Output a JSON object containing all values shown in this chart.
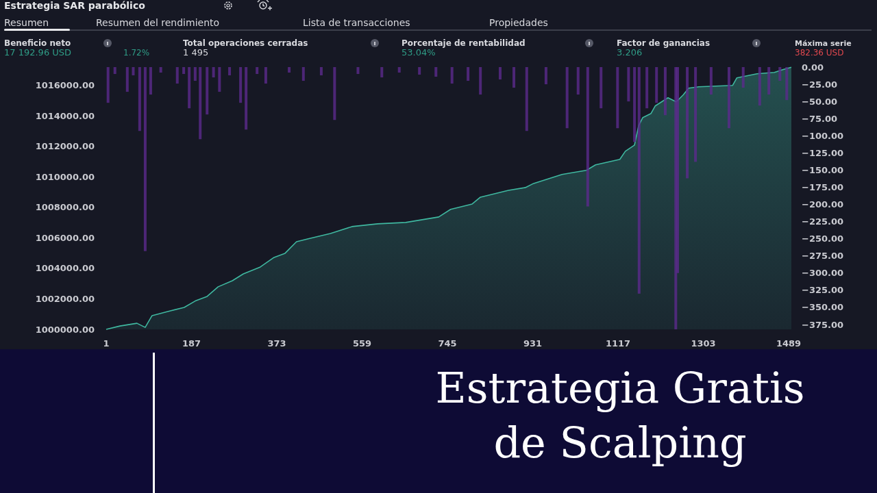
{
  "chart_data": {
    "type": "area",
    "title": "Estrategia SAR parabólico",
    "xlim": [
      1,
      1495
    ],
    "xticks": [
      1,
      187,
      373,
      559,
      745,
      931,
      1117,
      1303,
      1489
    ],
    "ylim": [
      1000000,
      1017200
    ],
    "yticks": [
      {
        "value": 1000000,
        "label": "1000000.00"
      },
      {
        "value": 1002000,
        "label": "1002000.00"
      },
      {
        "value": 1004000,
        "label": "1004000.00"
      },
      {
        "value": 1006000,
        "label": "1006000.00"
      },
      {
        "value": 1008000,
        "label": "1008000.00"
      },
      {
        "value": 1010000,
        "label": "1010000.00"
      },
      {
        "value": 1012000,
        "label": "1012000.00"
      },
      {
        "value": 1014000,
        "label": "1014000.00"
      },
      {
        "value": 1016000,
        "label": "1016000.00"
      }
    ],
    "y2lim": [
      -382,
      0
    ],
    "y2ticks": [
      {
        "value": 0,
        "label": "0.00"
      },
      {
        "value": -25,
        "label": "−25.00"
      },
      {
        "value": -50,
        "label": "−50.00"
      },
      {
        "value": -75,
        "label": "−75.00"
      },
      {
        "value": -100,
        "label": "−100.00"
      },
      {
        "value": -125,
        "label": "−125.00"
      },
      {
        "value": -150,
        "label": "−150.00"
      },
      {
        "value": -175,
        "label": "−175.00"
      },
      {
        "value": -200,
        "label": "−200.00"
      },
      {
        "value": -225,
        "label": "−225.00"
      },
      {
        "value": -250,
        "label": "−250.00"
      },
      {
        "value": -275,
        "label": "−275.00"
      },
      {
        "value": -300,
        "label": "−300.00"
      },
      {
        "value": -325,
        "label": "−325.00"
      },
      {
        "value": -350,
        "label": "−350.00"
      },
      {
        "value": -375,
        "label": "−375.00"
      }
    ],
    "grid": false,
    "series": [
      {
        "color": "#3fb8a0",
        "x": [
          1,
          31,
          68,
          86,
          101,
          135,
          171,
          197,
          221,
          245,
          276,
          300,
          337,
          367,
          391,
          416,
          440,
          490,
          537,
          593,
          654,
          726,
          752,
          799,
          817,
          878,
          915,
          933,
          995,
          1030,
          1048,
          1068,
          1121,
          1133,
          1153,
          1162,
          1171,
          1189,
          1198,
          1226,
          1244,
          1259,
          1271,
          1293,
          1367,
          1376,
          1420,
          1458,
          1476,
          1495
        ],
        "values": [
          1000000,
          1000220,
          1000400,
          1000130,
          1000900,
          1001170,
          1001440,
          1001890,
          1002160,
          1002790,
          1003190,
          1003640,
          1004090,
          1004720,
          1004990,
          1005750,
          1005930,
          1006290,
          1006740,
          1006920,
          1007010,
          1007370,
          1007870,
          1008220,
          1008670,
          1009120,
          1009300,
          1009570,
          1010160,
          1010340,
          1010430,
          1010790,
          1011150,
          1011680,
          1012090,
          1013350,
          1013890,
          1014160,
          1014650,
          1015190,
          1014920,
          1015370,
          1015820,
          1015910,
          1016000,
          1016490,
          1016760,
          1016850,
          1017030,
          1017190
        ]
      },
      {
        "type": "bar",
        "axis": "y2",
        "color": "#5b2a8c",
        "x": [
          5,
          20,
          47,
          60,
          74,
          86,
          98,
          120,
          156,
          170,
          182,
          195,
          206,
          221,
          235,
          248,
          270,
          294,
          306,
          330,
          349,
          400,
          431,
          470,
          499,
          550,
          602,
          640,
          684,
          720,
          755,
          790,
          817,
          860,
          890,
          918,
          960,
          1006,
          1030,
          1051,
          1080,
          1116,
          1140,
          1153,
          1163,
          1180,
          1201,
          1220,
          1243,
          1247,
          1268,
          1286,
          1320,
          1359,
          1390,
          1426,
          1446,
          1470,
          1485
        ],
        "values": [
          -52,
          -10,
          -36,
          -12,
          -93,
          -268,
          -40,
          -8,
          -24,
          -10,
          -60,
          -20,
          -105,
          -69,
          -15,
          -36,
          -12,
          -52,
          -91,
          -10,
          -24,
          -8,
          -20,
          -12,
          -77,
          -10,
          -15,
          -8,
          -11,
          -14,
          -24,
          -20,
          -40,
          -18,
          -30,
          -93,
          -25,
          -89,
          -40,
          -203,
          -60,
          -89,
          -50,
          -109,
          -330,
          -60,
          -52,
          -70,
          -382,
          -300,
          -162,
          -138,
          -40,
          -89,
          -30,
          -56,
          -40,
          -20,
          -48
        ]
      }
    ],
    "annotations": [
      "Resumen",
      "Resumen del rendimiento",
      "Lista de transacciones",
      "Propiedades",
      "Beneficio neto",
      "17 192.96 USD",
      "1.72%",
      "Total operaciones cerradas",
      "1 495",
      "Porcentaje de rentabilidad",
      "53.04%",
      "Factor de ganancias",
      "3.206",
      "Máxima serie",
      "382.36 USD",
      "Estrategia Gratis de Scalping"
    ]
  }
}
